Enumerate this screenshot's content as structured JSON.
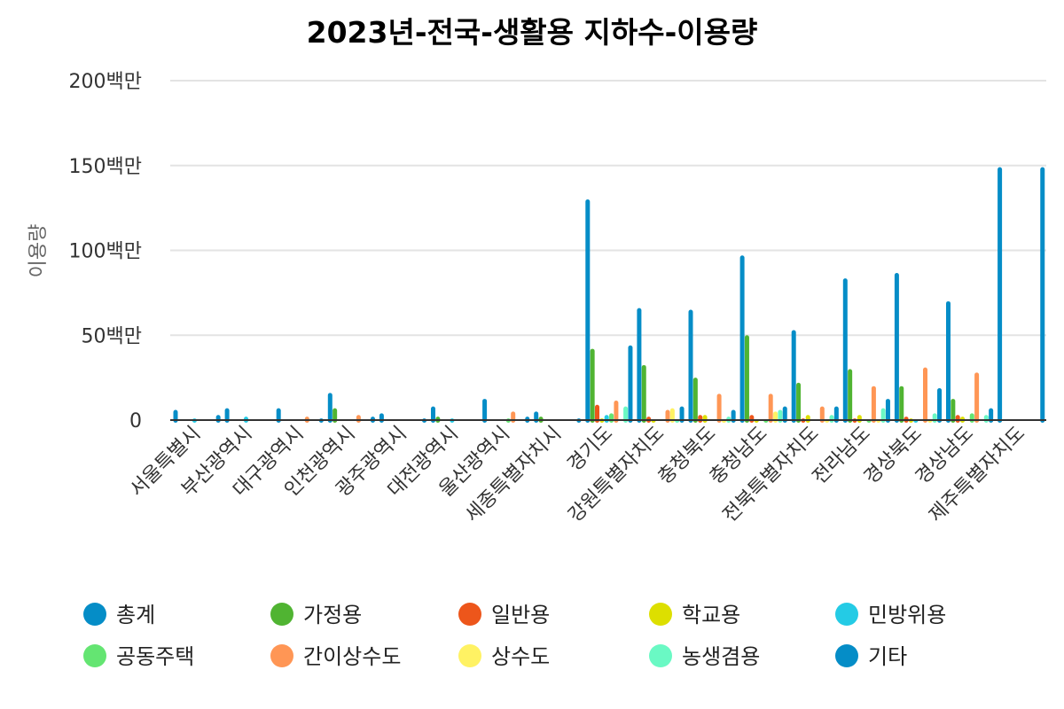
{
  "chart_data": {
    "type": "bar",
    "title": "2023년-전국-생활용 지하수-이용량",
    "xlabel": "",
    "ylabel": "이용량",
    "ylim": [
      0,
      200000000
    ],
    "ytick_values": [
      0,
      50000000,
      100000000,
      150000000,
      200000000
    ],
    "ytick_labels": [
      "0",
      "50백만",
      "100백만",
      "150백만",
      "200백만"
    ],
    "grid": true,
    "legend_position": "bottom",
    "categories": [
      "서울특별시",
      "부산광역시",
      "대구광역시",
      "인천광역시",
      "광주광역시",
      "대전광역시",
      "울산광역시",
      "세종특별자치시",
      "경기도",
      "강원특별자치도",
      "충청북도",
      "충청남도",
      "전북특별자치도",
      "전라남도",
      "경상북도",
      "경상남도",
      "제주특별자치도"
    ],
    "unit": "백만",
    "series": [
      {
        "name": "총계",
        "color": "#058DC7",
        "values": [
          6,
          7,
          7,
          16,
          4,
          8,
          12.5,
          5,
          130,
          66,
          65,
          97,
          53,
          83.5,
          86.7,
          70,
          149
        ]
      },
      {
        "name": "가정용",
        "color": "#50B432",
        "values": [
          0,
          0,
          0,
          7,
          0,
          2,
          0,
          2,
          42,
          32.4,
          25,
          50,
          22,
          30,
          20,
          12.5,
          0
        ]
      },
      {
        "name": "일반용",
        "color": "#ED561B",
        "values": [
          0,
          0,
          0,
          0,
          0,
          0,
          0,
          0,
          9,
          2,
          3,
          3,
          1,
          1,
          2,
          3,
          0
        ]
      },
      {
        "name": "학교용",
        "color": "#DDDF00",
        "values": [
          0,
          0,
          0,
          0,
          0,
          0,
          0,
          0,
          1,
          0.5,
          3,
          0.5,
          3,
          3,
          1,
          2,
          0
        ]
      },
      {
        "name": "민방위용",
        "color": "#24CBE5",
        "values": [
          1,
          2,
          0,
          0,
          0,
          1,
          0,
          0,
          3,
          0,
          0,
          0,
          0,
          0,
          0.5,
          0,
          0
        ]
      },
      {
        "name": "공동주택",
        "color": "#64E572",
        "values": [
          0,
          0,
          0,
          0,
          0,
          0,
          1,
          0,
          4,
          0,
          0,
          0.5,
          0,
          0.5,
          0,
          4,
          0
        ]
      },
      {
        "name": "간이상수도",
        "color": "#FF9655",
        "values": [
          0,
          0,
          2,
          3,
          0,
          0,
          5,
          0,
          11.5,
          6,
          15.5,
          15.5,
          8,
          20,
          31,
          28,
          0
        ]
      },
      {
        "name": "상수도",
        "color": "#FFF263",
        "values": [
          0,
          0,
          0,
          0,
          0,
          0,
          0,
          0,
          0,
          7,
          0.3,
          5,
          0.5,
          0.5,
          0.5,
          0,
          0
        ]
      },
      {
        "name": "농생겸용",
        "color": "#6AF9C4",
        "values": [
          0,
          0,
          0,
          0,
          0,
          0,
          0,
          0,
          8,
          0.5,
          2,
          6,
          3,
          7,
          4,
          3,
          0
        ]
      },
      {
        "name": "기타",
        "color": "#058DC7",
        "values": [
          3,
          0,
          1,
          2,
          1,
          0,
          2,
          1,
          44,
          8,
          6,
          8,
          8,
          12.5,
          18.8,
          7,
          149
        ]
      }
    ]
  }
}
